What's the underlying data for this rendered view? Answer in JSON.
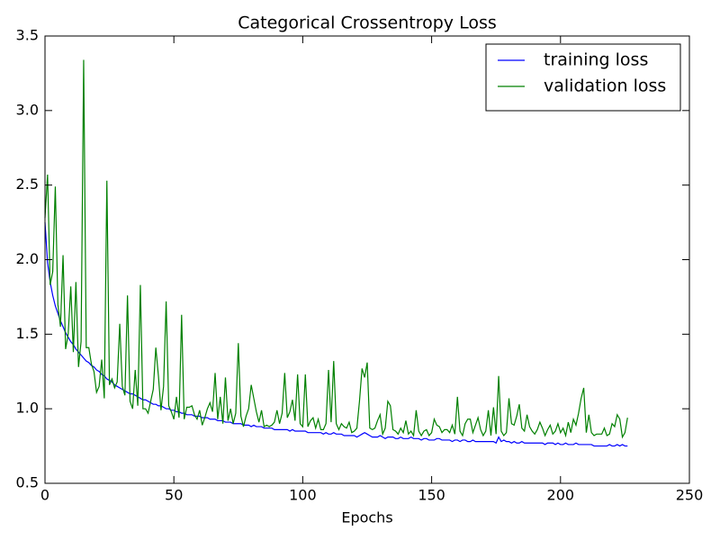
{
  "chart_data": {
    "type": "line",
    "title": "Categorical Crossentropy Loss",
    "x_label": "Epochs",
    "x": [
      0,
      1,
      2,
      3,
      4,
      5,
      6,
      7,
      8,
      9,
      10,
      11,
      12,
      13,
      14,
      15,
      16,
      17,
      18,
      19,
      20,
      21,
      22,
      23,
      24,
      25,
      26,
      27,
      28,
      29,
      30,
      31,
      32,
      33,
      34,
      35,
      36,
      37,
      38,
      39,
      40,
      41,
      42,
      43,
      44,
      45,
      46,
      47,
      48,
      49,
      50,
      51,
      52,
      53,
      54,
      55,
      56,
      57,
      58,
      59,
      60,
      61,
      62,
      63,
      64,
      65,
      66,
      67,
      68,
      69,
      70,
      71,
      72,
      73,
      74,
      75,
      76,
      77,
      78,
      79,
      80,
      81,
      82,
      83,
      84,
      85,
      86,
      87,
      88,
      89,
      90,
      91,
      92,
      93,
      94,
      95,
      96,
      97,
      98,
      99,
      100,
      101,
      102,
      103,
      104,
      105,
      106,
      107,
      108,
      109,
      110,
      111,
      112,
      113,
      114,
      115,
      116,
      117,
      118,
      119,
      120,
      121,
      122,
      123,
      124,
      125,
      126,
      127,
      128,
      129,
      130,
      131,
      132,
      133,
      134,
      135,
      136,
      137,
      138,
      139,
      140,
      141,
      142,
      143,
      144,
      145,
      146,
      147,
      148,
      149,
      150,
      151,
      152,
      153,
      154,
      155,
      156,
      157,
      158,
      159,
      160,
      161,
      162,
      163,
      164,
      165,
      166,
      167,
      168,
      169,
      170,
      171,
      172,
      173,
      174,
      175,
      176,
      177,
      178,
      179,
      180,
      181,
      182,
      183,
      184,
      185,
      186,
      187,
      188,
      189,
      190,
      191,
      192,
      193,
      194,
      195,
      196,
      197,
      198,
      199,
      200,
      201,
      202,
      203,
      204,
      205,
      206,
      207,
      208,
      209,
      210,
      211,
      212,
      213,
      214,
      215,
      216,
      217,
      218,
      219,
      220,
      221,
      222,
      223,
      224,
      225,
      226
    ],
    "series": [
      {
        "name": "training loss",
        "color": "#0000ff",
        "values": [
          2.25,
          1.98,
          1.85,
          1.76,
          1.69,
          1.64,
          1.59,
          1.55,
          1.51,
          1.48,
          1.45,
          1.43,
          1.4,
          1.38,
          1.36,
          1.34,
          1.32,
          1.31,
          1.29,
          1.28,
          1.26,
          1.25,
          1.23,
          1.22,
          1.2,
          1.19,
          1.18,
          1.16,
          1.15,
          1.14,
          1.13,
          1.12,
          1.11,
          1.1,
          1.1,
          1.09,
          1.08,
          1.07,
          1.06,
          1.06,
          1.05,
          1.04,
          1.03,
          1.03,
          1.02,
          1.02,
          1.01,
          1.0,
          1.0,
          0.99,
          0.99,
          0.98,
          0.98,
          0.97,
          0.97,
          0.96,
          0.96,
          0.96,
          0.95,
          0.95,
          0.95,
          0.94,
          0.94,
          0.94,
          0.93,
          0.93,
          0.93,
          0.92,
          0.92,
          0.92,
          0.91,
          0.91,
          0.91,
          0.9,
          0.9,
          0.9,
          0.9,
          0.89,
          0.89,
          0.89,
          0.88,
          0.89,
          0.88,
          0.88,
          0.88,
          0.87,
          0.87,
          0.87,
          0.87,
          0.86,
          0.86,
          0.86,
          0.86,
          0.86,
          0.86,
          0.85,
          0.86,
          0.85,
          0.85,
          0.85,
          0.85,
          0.85,
          0.84,
          0.84,
          0.84,
          0.84,
          0.84,
          0.84,
          0.83,
          0.84,
          0.83,
          0.83,
          0.84,
          0.83,
          0.83,
          0.83,
          0.82,
          0.82,
          0.82,
          0.82,
          0.82,
          0.81,
          0.82,
          0.83,
          0.84,
          0.83,
          0.82,
          0.81,
          0.81,
          0.81,
          0.82,
          0.81,
          0.8,
          0.81,
          0.81,
          0.81,
          0.8,
          0.8,
          0.81,
          0.8,
          0.8,
          0.8,
          0.81,
          0.8,
          0.8,
          0.8,
          0.79,
          0.8,
          0.8,
          0.79,
          0.79,
          0.79,
          0.8,
          0.8,
          0.79,
          0.79,
          0.79,
          0.79,
          0.78,
          0.79,
          0.79,
          0.78,
          0.79,
          0.79,
          0.78,
          0.78,
          0.79,
          0.78,
          0.78,
          0.78,
          0.78,
          0.78,
          0.78,
          0.78,
          0.78,
          0.77,
          0.81,
          0.78,
          0.79,
          0.78,
          0.78,
          0.77,
          0.78,
          0.77,
          0.77,
          0.78,
          0.77,
          0.77,
          0.77,
          0.77,
          0.77,
          0.77,
          0.77,
          0.77,
          0.76,
          0.77,
          0.77,
          0.77,
          0.76,
          0.77,
          0.76,
          0.76,
          0.77,
          0.76,
          0.76,
          0.76,
          0.77,
          0.76,
          0.76,
          0.76,
          0.76,
          0.76,
          0.76,
          0.75,
          0.75,
          0.75,
          0.75,
          0.75,
          0.75,
          0.76,
          0.75,
          0.75,
          0.76,
          0.75,
          0.76,
          0.75,
          0.75
        ]
      },
      {
        "name": "validation loss",
        "color": "#008000",
        "values": [
          2.28,
          2.57,
          1.83,
          1.92,
          2.49,
          1.7,
          1.55,
          2.03,
          1.4,
          1.5,
          1.82,
          1.38,
          1.85,
          1.28,
          1.45,
          3.34,
          1.41,
          1.41,
          1.3,
          1.25,
          1.11,
          1.15,
          1.33,
          1.07,
          2.53,
          1.16,
          1.2,
          1.14,
          1.18,
          1.57,
          1.15,
          1.09,
          1.76,
          1.05,
          1.0,
          1.26,
          1.02,
          1.83,
          1.0,
          1.0,
          0.97,
          1.05,
          1.13,
          1.41,
          1.22,
          0.99,
          1.15,
          1.72,
          1.02,
          0.98,
          0.93,
          1.08,
          0.94,
          1.63,
          0.93,
          1.01,
          1.01,
          1.02,
          0.96,
          0.93,
          0.99,
          0.89,
          0.94,
          1.0,
          1.04,
          0.98,
          1.24,
          0.93,
          1.08,
          0.9,
          1.21,
          0.92,
          1.0,
          0.9,
          0.97,
          1.44,
          0.95,
          0.88,
          0.95,
          1.0,
          1.16,
          1.07,
          0.98,
          0.91,
          0.99,
          0.88,
          0.89,
          0.88,
          0.89,
          0.91,
          0.99,
          0.9,
          0.97,
          1.24,
          0.94,
          0.98,
          1.06,
          0.92,
          1.23,
          0.9,
          0.88,
          1.23,
          0.88,
          0.92,
          0.94,
          0.87,
          0.93,
          0.86,
          0.86,
          0.9,
          1.26,
          0.91,
          1.32,
          0.9,
          0.86,
          0.9,
          0.88,
          0.87,
          0.91,
          0.84,
          0.85,
          0.87,
          1.05,
          1.27,
          1.21,
          1.31,
          0.87,
          0.86,
          0.87,
          0.92,
          0.96,
          0.83,
          0.87,
          1.05,
          1.02,
          0.86,
          0.85,
          0.83,
          0.87,
          0.84,
          0.92,
          0.83,
          0.85,
          0.82,
          0.99,
          0.85,
          0.82,
          0.85,
          0.86,
          0.82,
          0.84,
          0.93,
          0.89,
          0.88,
          0.84,
          0.86,
          0.86,
          0.84,
          0.89,
          0.83,
          1.08,
          0.85,
          0.82,
          0.9,
          0.93,
          0.93,
          0.84,
          0.89,
          0.94,
          0.86,
          0.82,
          0.85,
          0.99,
          0.82,
          1.01,
          0.83,
          1.22,
          0.85,
          0.82,
          0.84,
          1.07,
          0.9,
          0.89,
          0.95,
          1.03,
          0.87,
          0.85,
          0.96,
          0.88,
          0.85,
          0.83,
          0.86,
          0.91,
          0.87,
          0.82,
          0.86,
          0.89,
          0.83,
          0.85,
          0.9,
          0.84,
          0.87,
          0.82,
          0.91,
          0.84,
          0.93,
          0.89,
          0.97,
          1.07,
          1.14,
          0.84,
          0.96,
          0.84,
          0.82,
          0.83,
          0.83,
          0.83,
          0.87,
          0.82,
          0.83,
          0.9,
          0.88,
          0.96,
          0.93,
          0.81,
          0.84,
          0.94
        ]
      }
    ],
    "xlim": [
      0,
      250
    ],
    "xticks": [
      0,
      50,
      100,
      150,
      200,
      250
    ],
    "ylim": [
      0.5,
      3.5
    ],
    "yticks": [
      0.5,
      {
        "value": 1,
        "label": "1.0"
      },
      1.5,
      {
        "value": 2,
        "label": "2.0"
      },
      2.5,
      {
        "value": 3,
        "label": "3.0"
      },
      3.5
    ],
    "legend": "upper right"
  }
}
